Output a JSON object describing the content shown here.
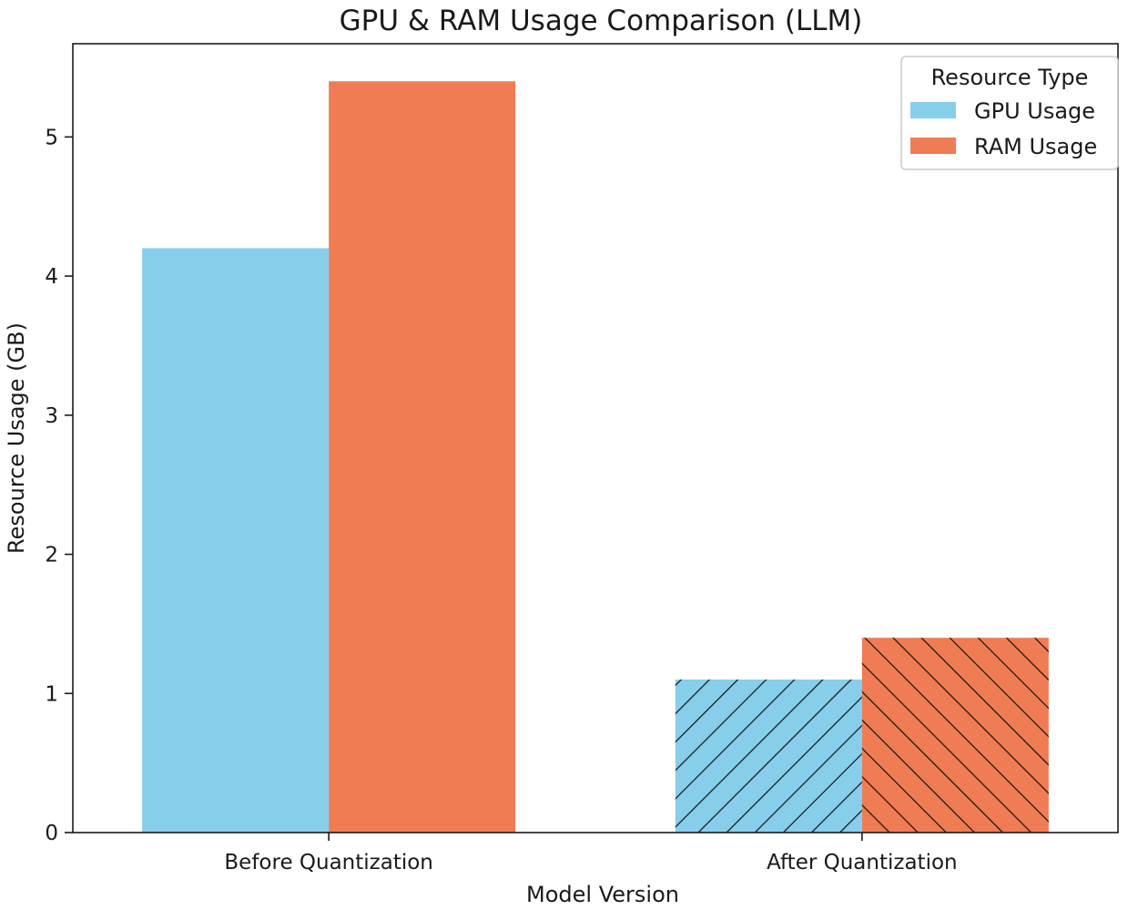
{
  "chart_data": {
    "type": "bar",
    "title": "GPU & RAM Usage Comparison (LLM)",
    "xlabel": "Model Version",
    "ylabel": "Resource Usage (GB)",
    "categories": [
      "Before Quantization",
      "After Quantization"
    ],
    "series": [
      {
        "name": "GPU Usage",
        "color": "#87CEEB",
        "values": [
          4.2,
          1.1
        ]
      },
      {
        "name": "RAM Usage",
        "color": "#F07C54",
        "values": [
          5.4,
          1.4
        ]
      }
    ],
    "hatched_categories": [
      "After Quantization"
    ],
    "ylim": [
      0,
      5.67
    ],
    "yticks": [
      0,
      1,
      2,
      3,
      4,
      5
    ],
    "grid": false,
    "legend": {
      "title": "Resource Type",
      "placement": "top-right"
    }
  }
}
